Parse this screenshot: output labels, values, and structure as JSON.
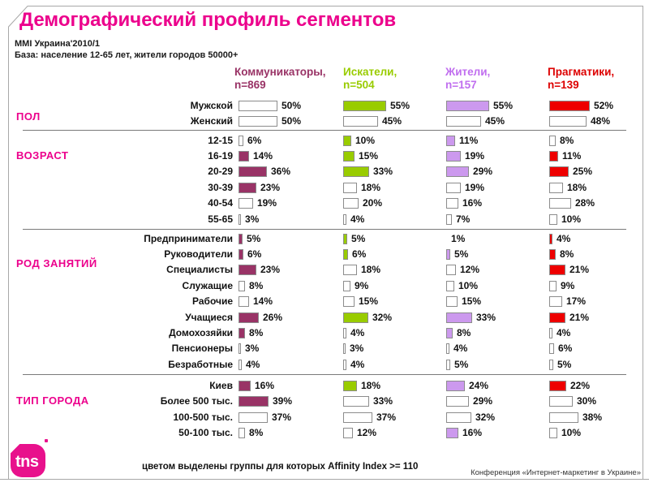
{
  "slide": {
    "title": "Демографический профиль сегментов",
    "subtitle": [
      "MMI Украина'2010/1",
      "База: население 12-65 лет, жители городов 50000+"
    ],
    "footer_note": "цветом выделены группы для которых Affinity Index >= 110",
    "footer_right": "Конференция «Интернет-маркетинг в Украине»",
    "logo_text": "tns",
    "accent_color": "#EC008C"
  },
  "segments": [
    {
      "name": "Коммуникаторы,",
      "n_label": "n=869",
      "color": "#993366",
      "header_color": "#993366"
    },
    {
      "name": "Искатели,",
      "n_label": "n=504",
      "color": "#99CC00",
      "header_color": "#99CC00"
    },
    {
      "name": "Жители,",
      "n_label": "n=157",
      "color": "#CC99EE",
      "header_color": "#C06EEF"
    },
    {
      "name": "Прагматики,",
      "n_label": "n=139",
      "color": "#EE0000",
      "header_color": "#DD0000"
    }
  ],
  "table": {
    "groups": [
      {
        "category": "ПОЛ",
        "rows": [
          {
            "label": "Мужской",
            "values": [
              50,
              55,
              55,
              52
            ],
            "filled": [
              false,
              true,
              true,
              true
            ]
          },
          {
            "label": "Женский",
            "values": [
              50,
              45,
              45,
              48
            ],
            "filled": [
              false,
              false,
              false,
              false
            ]
          }
        ]
      },
      {
        "category": "ВОЗРАСТ",
        "rows": [
          {
            "label": "12-15",
            "values": [
              6,
              10,
              11,
              8
            ],
            "filled": [
              false,
              true,
              true,
              false
            ]
          },
          {
            "label": "16-19",
            "values": [
              14,
              15,
              19,
              11
            ],
            "filled": [
              true,
              true,
              true,
              true
            ]
          },
          {
            "label": "20-29",
            "values": [
              36,
              33,
              29,
              25
            ],
            "filled": [
              true,
              true,
              true,
              true
            ]
          },
          {
            "label": "30-39",
            "values": [
              23,
              18,
              19,
              18
            ],
            "filled": [
              true,
              false,
              false,
              false
            ]
          },
          {
            "label": "40-54",
            "values": [
              19,
              20,
              16,
              28
            ],
            "filled": [
              false,
              false,
              false,
              false
            ]
          },
          {
            "label": "55-65",
            "values": [
              3,
              4,
              7,
              10
            ],
            "filled": [
              false,
              false,
              false,
              false
            ]
          }
        ]
      },
      {
        "category": "РОД ЗАНЯТИЙ",
        "rows": [
          {
            "label": "Предприниматели",
            "values": [
              5,
              5,
              1,
              4
            ],
            "filled": [
              true,
              true,
              false,
              true
            ]
          },
          {
            "label": "Руководители",
            "values": [
              6,
              6,
              5,
              8
            ],
            "filled": [
              true,
              true,
              true,
              true
            ]
          },
          {
            "label": "Специалисты",
            "values": [
              23,
              18,
              12,
              21
            ],
            "filled": [
              true,
              false,
              false,
              true
            ]
          },
          {
            "label": "Служащие",
            "values": [
              8,
              9,
              10,
              9
            ],
            "filled": [
              false,
              false,
              false,
              false
            ]
          },
          {
            "label": "Рабочие",
            "values": [
              14,
              15,
              15,
              17
            ],
            "filled": [
              false,
              false,
              false,
              false
            ]
          },
          {
            "label": "Учащиеся",
            "values": [
              26,
              32,
              33,
              21
            ],
            "filled": [
              true,
              true,
              true,
              true
            ]
          },
          {
            "label": "Домохозяйки",
            "values": [
              8,
              4,
              8,
              4
            ],
            "filled": [
              true,
              false,
              true,
              false
            ]
          },
          {
            "label": "Пенсионеры",
            "values": [
              3,
              3,
              4,
              6
            ],
            "filled": [
              false,
              false,
              false,
              false
            ]
          },
          {
            "label": "Безработные",
            "values": [
              4,
              4,
              5,
              5
            ],
            "filled": [
              false,
              false,
              false,
              false
            ]
          }
        ]
      },
      {
        "category": "ТИП ГОРОДА",
        "rows": [
          {
            "label": "Киев",
            "values": [
              16,
              18,
              24,
              22
            ],
            "filled": [
              true,
              true,
              true,
              true
            ]
          },
          {
            "label": "Более 500 тыс.",
            "values": [
              39,
              33,
              29,
              30
            ],
            "filled": [
              true,
              false,
              false,
              false
            ]
          },
          {
            "label": "100-500 тыс.",
            "values": [
              37,
              37,
              32,
              38
            ],
            "filled": [
              false,
              false,
              false,
              false
            ]
          },
          {
            "label": "50-100 тыс.",
            "values": [
              8,
              12,
              16,
              10
            ],
            "filled": [
              false,
              false,
              true,
              false
            ]
          }
        ]
      }
    ]
  },
  "chart_data": {
    "type": "bar",
    "orientation": "horizontal",
    "unit": "%",
    "title": "Демографический профиль сегментов",
    "source": "MMI Украина'2010/1",
    "base": "База: население 12-65 лет, жители городов 50000+",
    "group_labels": [
      "ПОЛ",
      "ВОЗРАСТ",
      "РОД ЗАНЯТИЙ",
      "ТИП ГОРОДА"
    ],
    "categories": [
      "Мужской",
      "Женский",
      "12-15",
      "16-19",
      "20-29",
      "30-39",
      "40-54",
      "55-65",
      "Предприниматели",
      "Руководители",
      "Специалисты",
      "Служащие",
      "Рабочие",
      "Учащиеся",
      "Домохозяйки",
      "Пенсионеры",
      "Безработные",
      "Киев",
      "Более 500 тыс.",
      "100-500 тыс.",
      "50-100 тыс."
    ],
    "series": [
      {
        "name": "Коммуникаторы",
        "n": 869,
        "color": "#993366",
        "values": [
          50,
          50,
          6,
          14,
          36,
          23,
          19,
          3,
          5,
          6,
          23,
          8,
          14,
          26,
          8,
          3,
          4,
          16,
          39,
          37,
          8
        ],
        "highlighted": [
          false,
          false,
          false,
          true,
          true,
          true,
          false,
          false,
          true,
          true,
          true,
          false,
          false,
          true,
          true,
          false,
          false,
          true,
          true,
          false,
          false
        ]
      },
      {
        "name": "Искатели",
        "n": 504,
        "color": "#99CC00",
        "values": [
          55,
          45,
          10,
          15,
          33,
          18,
          20,
          4,
          5,
          6,
          18,
          9,
          15,
          32,
          4,
          3,
          4,
          18,
          33,
          37,
          12
        ],
        "highlighted": [
          true,
          false,
          true,
          true,
          true,
          false,
          false,
          false,
          true,
          true,
          false,
          false,
          false,
          true,
          false,
          false,
          false,
          true,
          false,
          false,
          false
        ]
      },
      {
        "name": "Жители",
        "n": 157,
        "color": "#CC99EE",
        "values": [
          55,
          45,
          11,
          19,
          29,
          19,
          16,
          7,
          1,
          5,
          12,
          10,
          15,
          33,
          8,
          4,
          5,
          24,
          29,
          32,
          16
        ],
        "highlighted": [
          true,
          false,
          true,
          true,
          true,
          false,
          false,
          false,
          false,
          true,
          false,
          false,
          false,
          true,
          true,
          false,
          false,
          true,
          false,
          false,
          true
        ]
      },
      {
        "name": "Прагматики",
        "n": 139,
        "color": "#EE0000",
        "values": [
          52,
          48,
          8,
          11,
          25,
          18,
          28,
          10,
          4,
          8,
          21,
          9,
          17,
          21,
          4,
          6,
          5,
          22,
          30,
          38,
          10
        ],
        "highlighted": [
          true,
          false,
          false,
          true,
          true,
          false,
          false,
          false,
          true,
          true,
          true,
          false,
          false,
          true,
          false,
          false,
          false,
          true,
          false,
          false,
          false
        ]
      }
    ],
    "xlim": [
      0,
      58
    ],
    "highlight_rule": "filled color = Affinity Index >= 110"
  }
}
